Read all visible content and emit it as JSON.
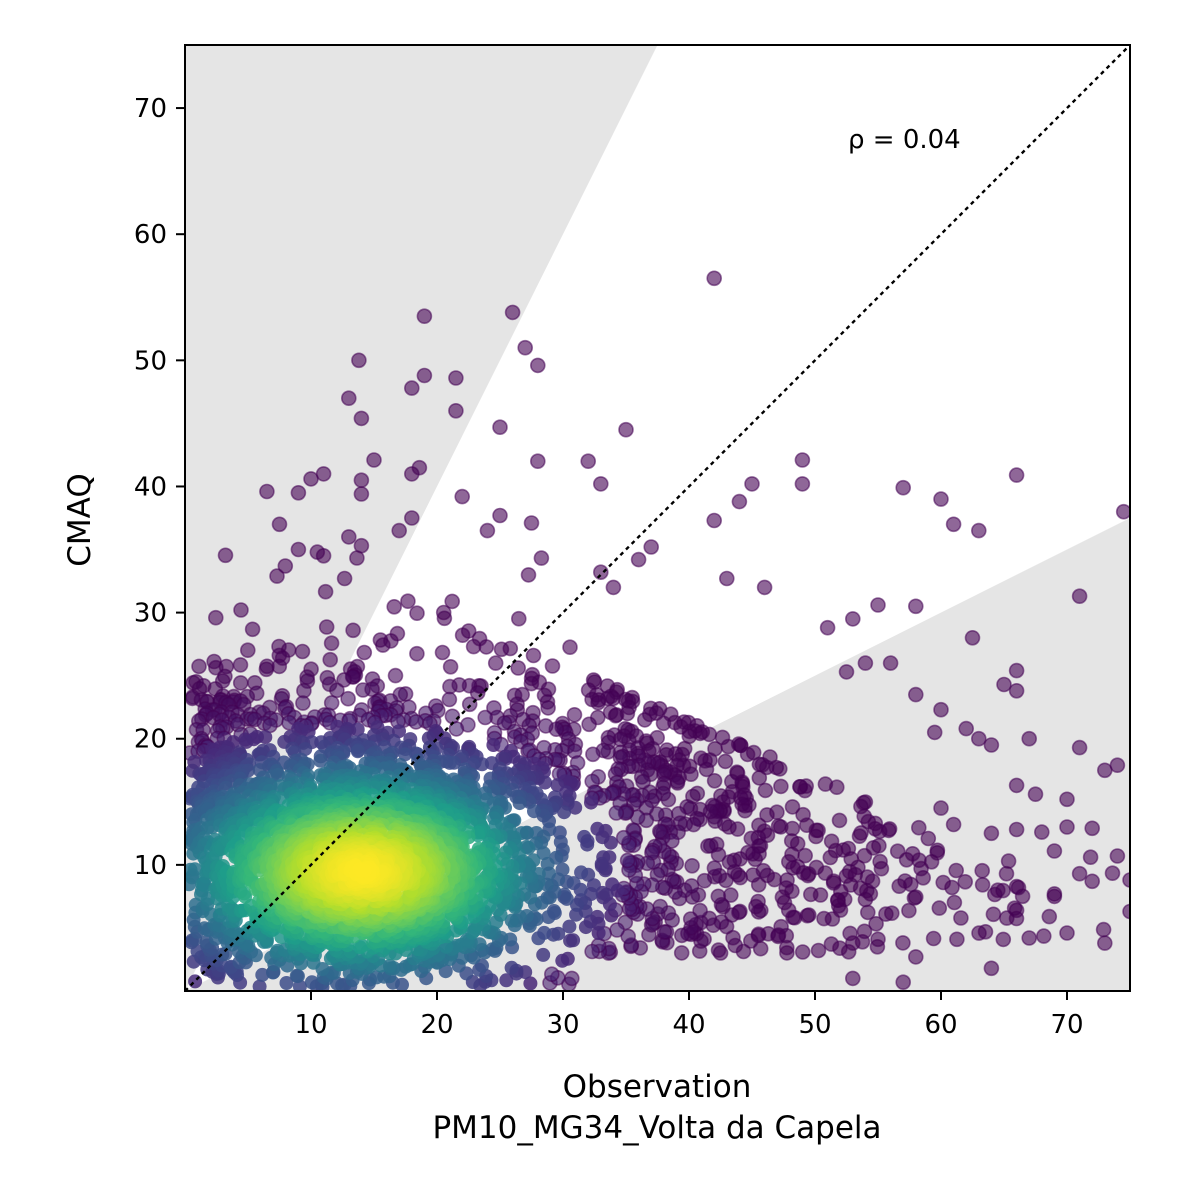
{
  "chart_data": {
    "type": "scatter",
    "xlabel": "Observation",
    "xlabel_sub": "PM10_MG34_Volta da Capela",
    "ylabel": "CMAQ",
    "xlim": [
      0,
      75
    ],
    "ylim": [
      0,
      75
    ],
    "x_ticks": [
      10,
      20,
      30,
      40,
      50,
      60,
      70
    ],
    "y_ticks": [
      10,
      20,
      30,
      40,
      50,
      60,
      70
    ],
    "grid": false,
    "annotation": "ρ = 0.04",
    "reference_line": {
      "type": "1:1",
      "style": "dotted",
      "color": "#000000"
    },
    "shaded_regions": [
      {
        "description": "CMAQ above 2x observation",
        "boundary_slope": 2.0,
        "color": "#e5e5e5"
      },
      {
        "description": "CMAQ below 0.5x observation",
        "boundary_slope": 0.5,
        "color": "#e5e5e5"
      }
    ],
    "colormap": "viridis (point density)",
    "density_center": {
      "x": 14,
      "y": 9.5
    },
    "outlier_points": [
      [
        42,
        56.5
      ],
      [
        26,
        53.8
      ],
      [
        19,
        53.5
      ],
      [
        27,
        51
      ],
      [
        13.8,
        50
      ],
      [
        28,
        49.6
      ],
      [
        19,
        48.8
      ],
      [
        21.5,
        48.6
      ],
      [
        18,
        47.8
      ],
      [
        13,
        47
      ],
      [
        21.5,
        46
      ],
      [
        14,
        45.4
      ],
      [
        35,
        44.5
      ],
      [
        25,
        44.7
      ],
      [
        15,
        42.1
      ],
      [
        28,
        42
      ],
      [
        32,
        42
      ],
      [
        49,
        42.1
      ],
      [
        66,
        40.9
      ],
      [
        42,
        37.3
      ],
      [
        74.5,
        38
      ],
      [
        49,
        40.2
      ],
      [
        33,
        40.2
      ],
      [
        57,
        39.9
      ],
      [
        60,
        39
      ],
      [
        44,
        38.8
      ],
      [
        45,
        40.2
      ],
      [
        22,
        39.2
      ],
      [
        14,
        40.5
      ],
      [
        14,
        39.4
      ],
      [
        18,
        41
      ],
      [
        11,
        41
      ],
      [
        10,
        40.6
      ],
      [
        9,
        39.5
      ],
      [
        6.5,
        39.6
      ],
      [
        61,
        37
      ],
      [
        63,
        36.5
      ],
      [
        25,
        37.7
      ],
      [
        27.5,
        37.1
      ],
      [
        24,
        36.5
      ],
      [
        17,
        36.5
      ],
      [
        18,
        37.5
      ],
      [
        7.5,
        37
      ],
      [
        9,
        35
      ],
      [
        10.5,
        34.8
      ],
      [
        14,
        35.3
      ],
      [
        13,
        36
      ],
      [
        11,
        34.5
      ],
      [
        37,
        35.2
      ],
      [
        36,
        34.2
      ],
      [
        34,
        32
      ],
      [
        33,
        33.2
      ],
      [
        43,
        32.7
      ],
      [
        46,
        32
      ],
      [
        71,
        31.3
      ],
      [
        55,
        30.6
      ],
      [
        58,
        30.5
      ],
      [
        62.5,
        28
      ],
      [
        53,
        29.5
      ],
      [
        51,
        28.8
      ],
      [
        54,
        26
      ],
      [
        56,
        26
      ],
      [
        52.5,
        25.3
      ],
      [
        66,
        25.4
      ],
      [
        65,
        24.3
      ],
      [
        66,
        23.8
      ],
      [
        58,
        23.5
      ],
      [
        60,
        22.3
      ],
      [
        59.5,
        20.5
      ],
      [
        62,
        20.8
      ],
      [
        63,
        20
      ],
      [
        64,
        19.5
      ],
      [
        67,
        20
      ],
      [
        71,
        19.3
      ],
      [
        74,
        17.9
      ],
      [
        73,
        17.5
      ],
      [
        60,
        14.5
      ],
      [
        61,
        13.2
      ],
      [
        64,
        12.5
      ],
      [
        66,
        12.8
      ],
      [
        68,
        12.6
      ],
      [
        70,
        13
      ],
      [
        72,
        12.9
      ],
      [
        70,
        15.2
      ],
      [
        67.5,
        15.6
      ],
      [
        66,
        16.3
      ],
      [
        74,
        10.7
      ],
      [
        75,
        8.8
      ],
      [
        71,
        9.3
      ],
      [
        72,
        8.7
      ],
      [
        69,
        11.1
      ],
      [
        69,
        7.7
      ],
      [
        69,
        7.5
      ],
      [
        66,
        6.4
      ],
      [
        67,
        4.2
      ],
      [
        70,
        4.6
      ],
      [
        73,
        3.8
      ],
      [
        75,
        6.3
      ],
      [
        64,
        1.8
      ],
      [
        58,
        2.7
      ],
      [
        57,
        0.7
      ],
      [
        55,
        4.1
      ],
      [
        53,
        3.8
      ],
      [
        53,
        1
      ]
    ]
  }
}
